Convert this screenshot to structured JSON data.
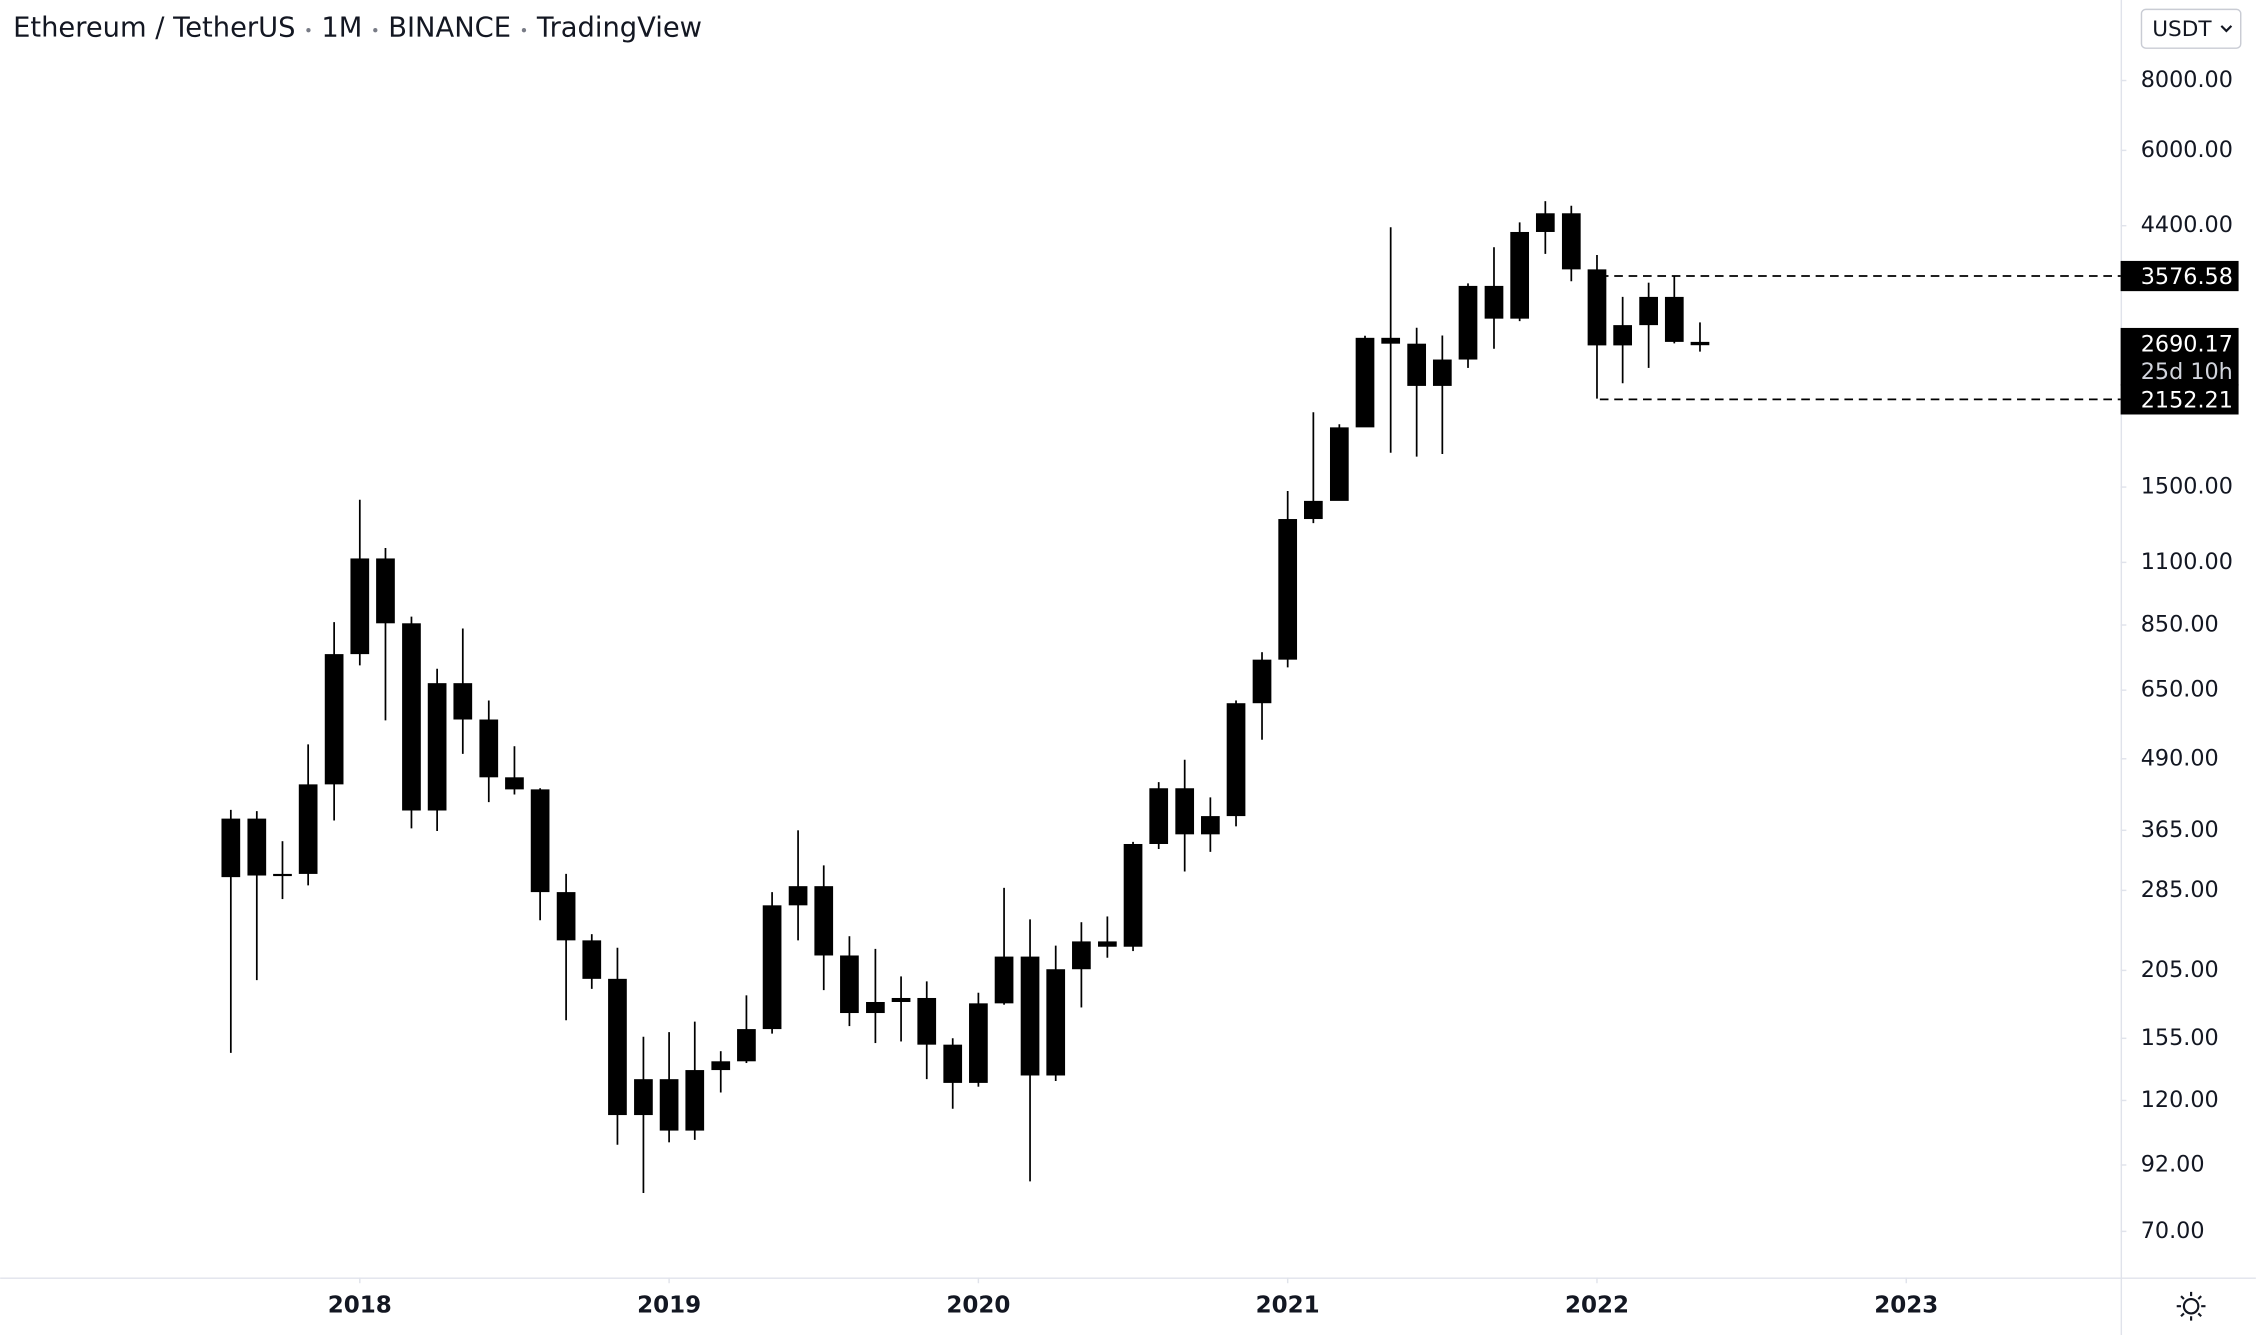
{
  "chart_data": {
    "type": "candlestick",
    "title": "Ethereum / TetherUS",
    "interval": "1M",
    "exchange": "BINANCE",
    "source": "TradingView",
    "currency": "USDT",
    "color": "#000000",
    "log_scale": true,
    "x": [
      2017.583,
      2017.667,
      2017.75,
      2017.833,
      2017.917,
      2018,
      2018.083,
      2018.167,
      2018.25,
      2018.333,
      2018.417,
      2018.5,
      2018.583,
      2018.667,
      2018.75,
      2018.833,
      2018.917,
      2019,
      2019.083,
      2019.167,
      2019.25,
      2019.333,
      2019.417,
      2019.5,
      2019.583,
      2019.667,
      2019.75,
      2019.833,
      2019.917,
      2020,
      2020.083,
      2020.167,
      2020.25,
      2020.333,
      2020.417,
      2020.5,
      2020.583,
      2020.667,
      2020.75,
      2020.833,
      2020.917,
      2021,
      2021.083,
      2021.167,
      2021.25,
      2021.333,
      2021.417,
      2021.5,
      2021.583,
      2021.667,
      2021.75,
      2021.833,
      2021.917,
      2022,
      2022.083,
      2022.167,
      2022.25,
      2022.333
    ],
    "open": [
      301,
      383,
      303,
      305,
      441,
      754,
      1118,
      856,
      396,
      669,
      576,
      454,
      432,
      283,
      232,
      198,
      113,
      131,
      106,
      136,
      141,
      161,
      268,
      290,
      218,
      172,
      180,
      183,
      151,
      129,
      179,
      217,
      133,
      206,
      231,
      226,
      345,
      434,
      359,
      387,
      616,
      737,
      1315,
      1417,
      1918,
      2773,
      2707,
      2275,
      2536,
      3434,
      3001,
      4288,
      4631,
      3676,
      2688,
      2922,
      3282,
      2727
    ],
    "high": [
      397,
      395,
      349,
      520,
      860,
      1424,
      1167,
      880,
      710,
      838,
      623,
      516,
      434,
      305,
      238,
      225,
      156,
      159,
      166,
      147,
      185,
      283,
      365,
      316,
      236,
      224,
      200,
      196,
      155,
      187,
      288,
      253,
      227,
      250,
      256,
      348,
      445,
      488,
      418,
      623,
      760,
      1476,
      2041,
      1943,
      2797,
      4372,
      2891,
      2800,
      3470,
      4027,
      4460,
      4868,
      4778,
      3900,
      3283,
      3480,
      3580,
      2955
    ],
    "low": [
      146,
      197,
      275,
      291,
      380,
      720,
      574,
      368,
      364,
      500,
      410,
      423,
      252,
      167,
      190,
      100,
      82,
      101,
      102,
      124,
      140,
      158,
      232,
      189,
      163,
      152,
      153,
      131,
      116,
      127,
      178,
      86,
      130,
      176,
      216,
      222,
      338,
      308,
      334,
      371,
      530,
      714,
      1293,
      1430,
      1932,
      1728,
      1700,
      1719,
      2450,
      2651,
      2970,
      3918,
      3500,
      2159,
      2300,
      2450,
      2711,
      2620
    ],
    "close": [
      383,
      303,
      305,
      441,
      754,
      1118,
      856,
      396,
      669,
      576,
      454,
      432,
      283,
      232,
      198,
      113,
      131,
      106,
      136,
      141,
      161,
      268,
      290,
      218,
      172,
      180,
      183,
      151,
      129,
      179,
      217,
      133,
      206,
      231,
      226,
      345,
      434,
      359,
      387,
      616,
      737,
      1315,
      1417,
      1918,
      2773,
      2707,
      2275,
      2536,
      3434,
      3001,
      4288,
      4631,
      3676,
      2688,
      2922,
      3282,
      2727,
      2690.17
    ],
    "xlim": [
      2016.8372,
      2023.693
    ],
    "xticks": [
      2018,
      2019,
      2020,
      2021,
      2022,
      2023
    ],
    "ylim": [
      57.9,
      11145
    ],
    "yticks": [
      {
        "value": 8000,
        "label": "8000.00"
      },
      {
        "value": 6000,
        "label": "6000.00"
      },
      {
        "value": 4400,
        "label": "4400.00"
      },
      {
        "value": 1500,
        "label": "1500.00"
      },
      {
        "value": 1100,
        "label": "1100.00"
      },
      {
        "value": 850,
        "label": "850.00"
      },
      {
        "value": 650,
        "label": "650.00"
      },
      {
        "value": 490,
        "label": "490.00"
      },
      {
        "value": 365,
        "label": "365.00"
      },
      {
        "value": 285,
        "label": "285.00"
      },
      {
        "value": 205,
        "label": "205.00"
      },
      {
        "value": 155,
        "label": "155.00"
      },
      {
        "value": 120,
        "label": "120.00"
      },
      {
        "value": 92,
        "label": "92.00"
      },
      {
        "value": 70,
        "label": "70.00"
      }
    ],
    "levels": [
      3576.58,
      2152.21
    ],
    "countdown": "25d 10h"
  }
}
